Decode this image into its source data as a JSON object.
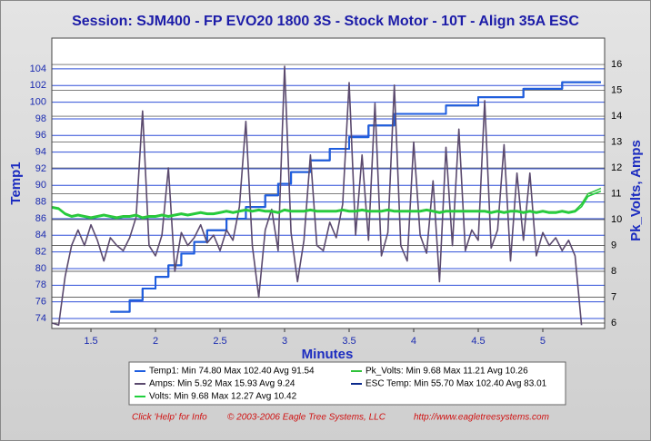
{
  "chart_data": {
    "type": "line",
    "title": "Session: SJM400 - FP EVO20 1800 3S - Stock Motor - 10T - Align 35A ESC",
    "xlabel": "Minutes",
    "ylabel": "Temp1",
    "y2label": "Pk_Volts, Amps",
    "xlim": [
      1.197,
      5.479
    ],
    "ylim": [
      72.8,
      107.7
    ],
    "y2lim": [
      5.79,
      17.02
    ],
    "xticks": [
      1.5,
      2,
      2.5,
      3,
      3.5,
      4,
      4.5,
      5
    ],
    "yticks": [
      74,
      76,
      78,
      80,
      82,
      84,
      86,
      88,
      90,
      92,
      94,
      96,
      98,
      100,
      102,
      104
    ],
    "y2ticks": [
      6,
      7,
      8,
      9,
      10,
      11,
      12,
      13,
      14,
      15,
      16
    ],
    "grid": true,
    "x": [
      1.2,
      1.25,
      1.3,
      1.35,
      1.4,
      1.45,
      1.5,
      1.55,
      1.6,
      1.65,
      1.7,
      1.75,
      1.8,
      1.85,
      1.9,
      1.95,
      2.0,
      2.05,
      2.1,
      2.15,
      2.2,
      2.25,
      2.3,
      2.35,
      2.4,
      2.45,
      2.5,
      2.55,
      2.6,
      2.65,
      2.7,
      2.75,
      2.8,
      2.85,
      2.9,
      2.95,
      3.0,
      3.05,
      3.1,
      3.15,
      3.2,
      3.25,
      3.3,
      3.35,
      3.4,
      3.45,
      3.5,
      3.55,
      3.6,
      3.65,
      3.7,
      3.75,
      3.8,
      3.85,
      3.9,
      3.95,
      4.0,
      4.05,
      4.1,
      4.15,
      4.2,
      4.25,
      4.3,
      4.35,
      4.4,
      4.45,
      4.5,
      4.55,
      4.6,
      4.65,
      4.7,
      4.75,
      4.8,
      4.85,
      4.9,
      4.95,
      5.0,
      5.05,
      5.1,
      5.15,
      5.2,
      5.25,
      5.3,
      5.35,
      5.4,
      5.45
    ],
    "series": [
      {
        "name": "ESC Temp:  Min 55.70 Max 102.40 Avg 83.01",
        "color": "#0b2a8c",
        "axis": "y",
        "step": true,
        "values": [
          null,
          null,
          null,
          null,
          null,
          null,
          null,
          null,
          null,
          74.8,
          74.8,
          74.8,
          76.2,
          76.2,
          77.6,
          77.6,
          79,
          79,
          80.4,
          80.4,
          81.8,
          81.8,
          83.2,
          83.2,
          84.6,
          84.6,
          84.6,
          86,
          86,
          86,
          87.4,
          87.4,
          87.4,
          88.8,
          88.8,
          90.2,
          90.2,
          91.6,
          91.6,
          91.6,
          93,
          93,
          93,
          94.4,
          94.4,
          94.4,
          95.8,
          95.8,
          95.8,
          97.2,
          97.2,
          97.2,
          97.2,
          98.6,
          98.6,
          98.6,
          98.6,
          98.6,
          98.6,
          98.6,
          98.6,
          99.6,
          99.6,
          99.6,
          99.6,
          99.6,
          100.6,
          100.6,
          100.6,
          100.6,
          100.6,
          100.6,
          100.6,
          101.6,
          101.6,
          101.6,
          101.6,
          101.6,
          101.6,
          102.4,
          102.4,
          102.4,
          102.4,
          102.4,
          102.4,
          102.4
        ]
      },
      {
        "name": "Temp1:  Min 74.80 Max 102.40 Avg 91.54",
        "color": "#1e5ee0",
        "axis": "y",
        "step": true,
        "values": [
          null,
          null,
          null,
          null,
          null,
          null,
          null,
          null,
          null,
          74.8,
          74.8,
          74.8,
          76.2,
          76.2,
          77.6,
          77.6,
          79,
          79,
          80.4,
          80.4,
          81.8,
          81.8,
          83.2,
          83.2,
          84.6,
          84.6,
          84.6,
          86,
          86,
          86,
          87.4,
          87.4,
          87.4,
          88.8,
          88.8,
          90.2,
          90.2,
          91.6,
          91.6,
          91.6,
          93,
          93,
          93,
          94.4,
          94.4,
          94.4,
          95.8,
          95.8,
          95.8,
          97.2,
          97.2,
          97.2,
          97.2,
          98.6,
          98.6,
          98.6,
          98.6,
          98.6,
          98.6,
          98.6,
          98.6,
          99.6,
          99.6,
          99.6,
          99.6,
          99.6,
          100.6,
          100.6,
          100.6,
          100.6,
          100.6,
          100.6,
          100.6,
          101.6,
          101.6,
          101.6,
          101.6,
          101.6,
          101.6,
          102.4,
          102.4,
          102.4,
          102.4,
          102.4,
          102.4,
          102.4
        ]
      },
      {
        "name": "Amps:  Min 5.92 Max 15.93 Avg 9.24",
        "color": "#5b4a6e",
        "axis": "y2",
        "step": false,
        "values": [
          6.0,
          5.92,
          7.8,
          9.0,
          9.6,
          9.0,
          9.8,
          9.2,
          8.4,
          9.3,
          9.0,
          8.8,
          9.3,
          10.1,
          14.2,
          9.0,
          8.6,
          9.4,
          12.0,
          8.0,
          9.5,
          9.0,
          9.3,
          9.8,
          9.1,
          9.4,
          8.8,
          9.6,
          9.2,
          10.5,
          13.8,
          9.0,
          7.0,
          9.6,
          10.4,
          8.8,
          15.93,
          9.5,
          7.6,
          9.2,
          12.5,
          9.0,
          8.8,
          9.9,
          9.3,
          10.6,
          15.3,
          9.4,
          12.5,
          9.2,
          14.5,
          8.6,
          9.5,
          15.2,
          9.0,
          8.4,
          13.0,
          9.4,
          8.7,
          11.5,
          7.6,
          12.8,
          9.0,
          13.5,
          8.8,
          9.6,
          9.2,
          14.6,
          8.9,
          9.6,
          12.9,
          8.4,
          11.8,
          9.2,
          11.8,
          8.6,
          9.5,
          9.0,
          9.3,
          8.8,
          9.2,
          8.6,
          5.92,
          null,
          null,
          null
        ]
      },
      {
        "name": "Pk_Volts:  Min 9.68 Max 11.21 Avg 10.26",
        "color": "#2fc23a",
        "axis": "y2",
        "step": false,
        "values": [
          10.5,
          10.45,
          10.25,
          10.15,
          10.2,
          10.15,
          10.1,
          10.15,
          10.2,
          10.15,
          10.1,
          10.15,
          10.15,
          10.2,
          10.1,
          10.15,
          10.15,
          10.2,
          10.15,
          10.2,
          10.25,
          10.2,
          10.25,
          10.3,
          10.25,
          10.25,
          10.3,
          10.35,
          10.3,
          10.35,
          10.4,
          10.35,
          10.4,
          10.35,
          10.35,
          10.3,
          10.4,
          10.35,
          10.35,
          10.35,
          10.4,
          10.35,
          10.35,
          10.35,
          10.35,
          10.4,
          10.35,
          10.35,
          10.4,
          10.35,
          10.35,
          10.35,
          10.4,
          10.35,
          10.35,
          10.35,
          10.35,
          10.35,
          10.4,
          10.35,
          10.3,
          10.35,
          10.35,
          10.35,
          10.35,
          10.35,
          10.35,
          10.35,
          10.3,
          10.35,
          10.3,
          10.35,
          10.35,
          10.3,
          10.35,
          10.3,
          10.35,
          10.3,
          10.3,
          10.35,
          10.3,
          10.35,
          10.6,
          11.0,
          11.1,
          11.21
        ]
      },
      {
        "name": "Volts:  Min 9.68 Max 12.27 Avg 10.42",
        "color": "#1fd03c",
        "axis": "y2",
        "step": false,
        "values": [
          10.45,
          10.4,
          10.2,
          10.1,
          10.15,
          10.1,
          10.05,
          10.1,
          10.15,
          10.1,
          10.05,
          10.1,
          10.1,
          10.15,
          10.05,
          10.1,
          10.1,
          10.15,
          10.1,
          10.15,
          10.2,
          10.15,
          10.2,
          10.25,
          10.2,
          10.2,
          10.25,
          10.3,
          10.25,
          10.3,
          10.35,
          10.3,
          10.35,
          10.3,
          10.3,
          10.25,
          10.35,
          10.3,
          10.3,
          10.3,
          10.35,
          10.3,
          10.3,
          10.3,
          10.3,
          10.35,
          10.3,
          10.3,
          10.35,
          10.3,
          10.3,
          10.3,
          10.35,
          10.3,
          10.3,
          10.3,
          10.3,
          10.3,
          10.35,
          10.3,
          10.25,
          10.3,
          10.3,
          10.3,
          10.3,
          10.3,
          10.3,
          10.3,
          10.25,
          10.3,
          10.25,
          10.3,
          10.3,
          10.25,
          10.3,
          10.25,
          10.3,
          10.25,
          10.25,
          10.3,
          10.25,
          10.3,
          10.5,
          10.9,
          11.0,
          11.1
        ]
      }
    ],
    "legend_order": [
      1,
      3,
      2,
      0,
      4
    ],
    "footer": [
      "Click 'Help' for Info",
      "© 2003-2006 Eagle Tree Systems, LLC",
      "http://www.eagletreesystems.com"
    ]
  }
}
